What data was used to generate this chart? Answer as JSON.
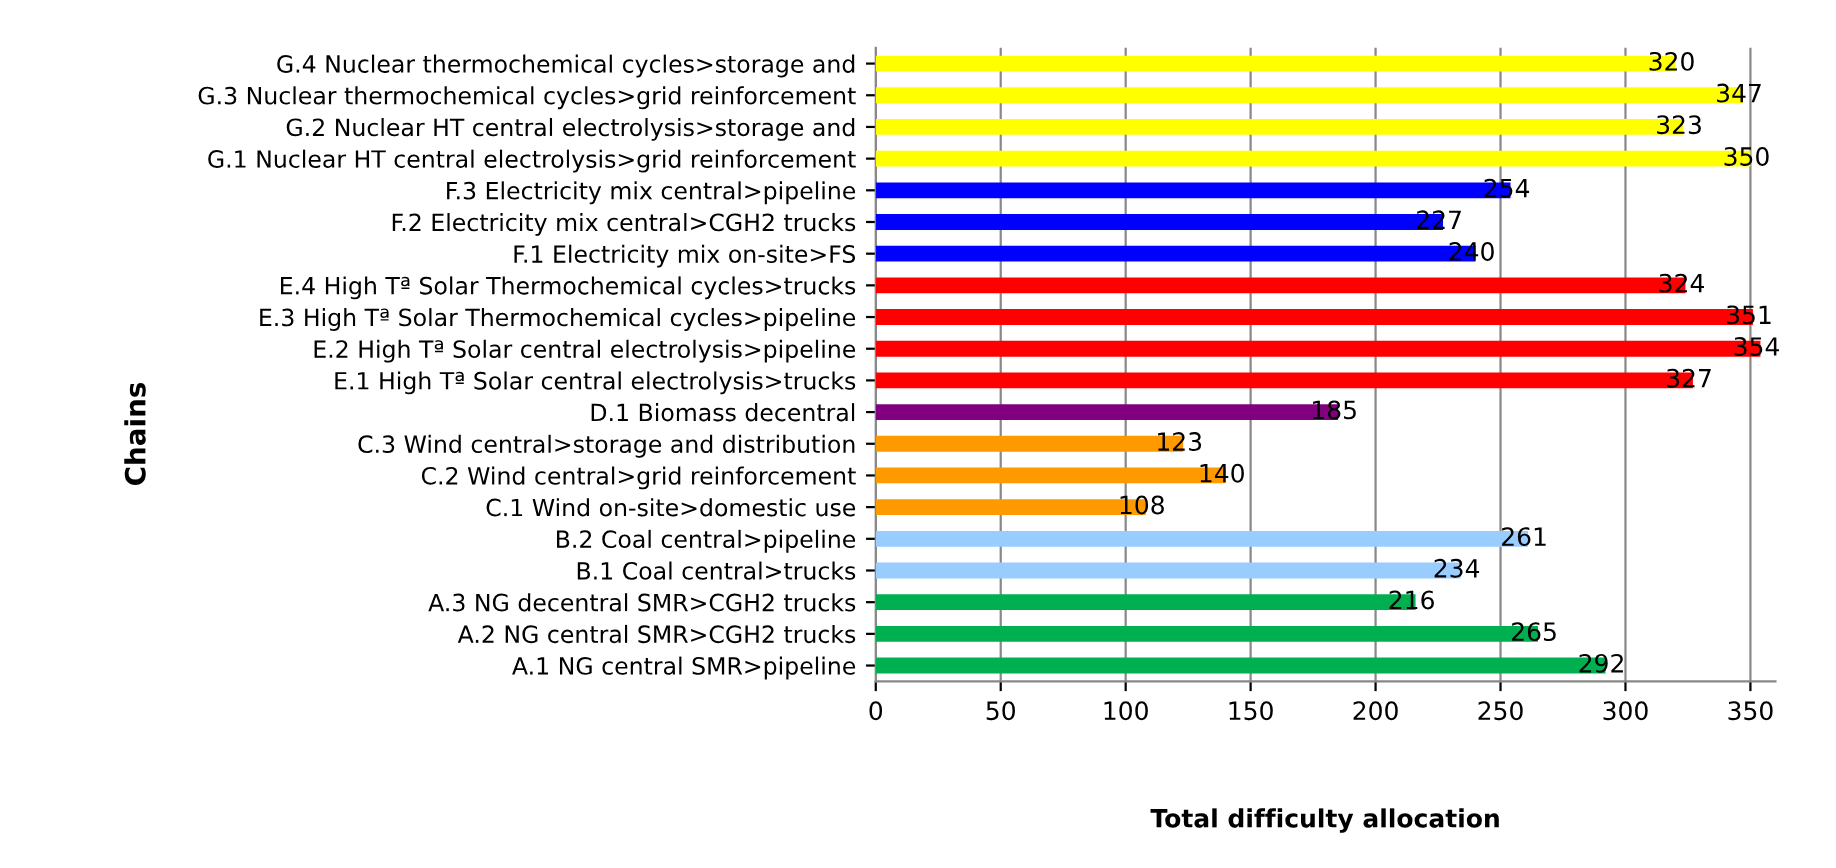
{
  "chart_data": {
    "type": "bar",
    "orientation": "horizontal",
    "xlabel": "Total difficulty allocation",
    "ylabel": "Chains",
    "categories": [
      "G.4 Nuclear thermochemical cycles>storage and",
      "G.3 Nuclear thermochemical cycles>grid reinforcement",
      "G.2 Nuclear HT central electrolysis>storage and",
      "G.1 Nuclear HT central electrolysis>grid reinforcement",
      "F.3 Electricity mix central>pipeline",
      "F.2 Electricity mix central>CGH2 trucks",
      "F.1 Electricity mix on-site>FS",
      "E.4 High Tª Solar Thermochemical cycles>trucks",
      "E.3 High Tª Solar Thermochemical cycles>pipeline",
      "E.2 High Tª Solar central electrolysis>pipeline",
      "E.1 High Tª Solar central electrolysis>trucks",
      "D.1 Biomass decentral",
      "C.3 Wind central>storage and distribution",
      "C.2 Wind central>grid reinforcement",
      "C.1 Wind on-site>domestic use",
      "B.2 Coal central>pipeline",
      "B.1 Coal central>trucks",
      "A.3 NG decentral SMR>CGH2 trucks",
      "A.2 NG central SMR>CGH2 trucks",
      "A.1 NG central SMR>pipeline"
    ],
    "values": [
      320,
      347,
      323,
      350,
      254,
      227,
      240,
      324,
      351,
      354,
      327,
      185,
      123,
      140,
      108,
      261,
      234,
      216,
      265,
      292
    ],
    "colors": [
      "#ffff00",
      "#ffff00",
      "#ffff00",
      "#ffff00",
      "#0000ff",
      "#0000ff",
      "#0000ff",
      "#ff0000",
      "#ff0000",
      "#ff0000",
      "#ff0000",
      "#800080",
      "#ff9900",
      "#ff9900",
      "#ff9900",
      "#99ccff",
      "#99ccff",
      "#00b050",
      "#00b050",
      "#00b050"
    ],
    "xlim": [
      0,
      360
    ],
    "xticks": [
      0,
      50,
      100,
      150,
      200,
      250,
      300,
      350
    ],
    "grid": "x",
    "data_labels": true
  }
}
